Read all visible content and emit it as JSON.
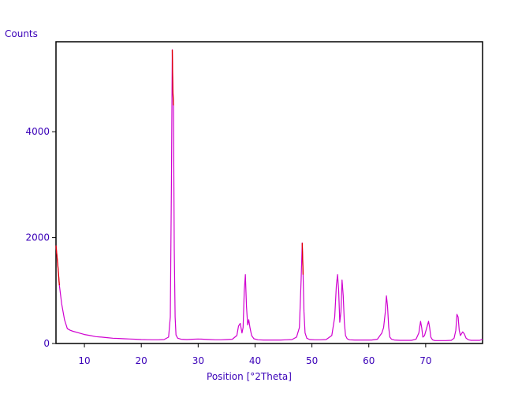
{
  "chart_data": {
    "type": "line",
    "title": "",
    "xlabel": "Position [°2Theta]",
    "ylabel": "Counts",
    "xlim": [
      5,
      80
    ],
    "ylim": [
      0,
      5700
    ],
    "x_ticks": [
      10,
      20,
      30,
      40,
      50,
      60,
      70
    ],
    "y_ticks": [
      0,
      2000,
      4000
    ],
    "grid": false,
    "legend": "none",
    "colors": {
      "pattern": "#d000d0",
      "peak_overlay": "#e00000",
      "axis_text": "#3a00b8",
      "frame": "#000000"
    },
    "series": [
      {
        "x": [
          5.0,
          5.3,
          5.6,
          6.0,
          6.5,
          7.0,
          7.5,
          8.0,
          9.0,
          10.0,
          11.0,
          12.0,
          13.0,
          14.0,
          15.0,
          16.0,
          17.0,
          18.0,
          19.0,
          20.0,
          21.0,
          22.0,
          23.0,
          24.0,
          24.8,
          25.1,
          25.3,
          25.45,
          25.55,
          25.65,
          25.8,
          25.95,
          26.1,
          26.4,
          27.0,
          28.0,
          29.0,
          30.0,
          31.0,
          32.0,
          33.0,
          34.0,
          35.0,
          36.0,
          36.8,
          37.1,
          37.4,
          37.7,
          37.9,
          38.1,
          38.3,
          38.5,
          38.7,
          38.9,
          39.1,
          39.4,
          39.8,
          40.5,
          41.5,
          42.5,
          43.5,
          44.5,
          45.5,
          46.5,
          47.3,
          47.8,
          48.1,
          48.3,
          48.45,
          48.6,
          48.8,
          49.1,
          49.6,
          50.5,
          51.5,
          52.5,
          53.5,
          54.0,
          54.3,
          54.5,
          54.7,
          54.9,
          55.1,
          55.3,
          55.5,
          55.7,
          55.9,
          56.2,
          56.6,
          57.5,
          58.5,
          59.5,
          60.5,
          61.5,
          62.3,
          62.6,
          62.9,
          63.1,
          63.3,
          63.5,
          63.7,
          64.0,
          64.5,
          65.5,
          66.5,
          67.5,
          68.3,
          68.8,
          69.1,
          69.3,
          69.5,
          69.8,
          70.2,
          70.5,
          70.7,
          70.9,
          71.2,
          71.6,
          72.5,
          73.5,
          74.5,
          75.0,
          75.3,
          75.5,
          75.7,
          75.9,
          76.1,
          76.5,
          76.8,
          77.1,
          77.5,
          78.0,
          78.5,
          79.0,
          79.5,
          80.0
        ],
        "y": [
          1850,
          1500,
          1100,
          750,
          450,
          280,
          250,
          230,
          200,
          170,
          150,
          130,
          120,
          110,
          100,
          95,
          90,
          85,
          80,
          75,
          72,
          70,
          70,
          75,
          120,
          500,
          3000,
          5550,
          4800,
          4500,
          1800,
          500,
          160,
          100,
          80,
          75,
          80,
          85,
          80,
          75,
          70,
          70,
          75,
          80,
          150,
          330,
          380,
          200,
          300,
          1000,
          1300,
          700,
          350,
          450,
          300,
          150,
          90,
          70,
          65,
          65,
          65,
          65,
          70,
          75,
          120,
          300,
          1200,
          1900,
          1300,
          600,
          200,
          100,
          75,
          70,
          70,
          75,
          150,
          500,
          1100,
          1300,
          1000,
          400,
          600,
          1200,
          900,
          400,
          150,
          90,
          70,
          65,
          65,
          65,
          65,
          80,
          200,
          300,
          600,
          900,
          700,
          300,
          120,
          80,
          65,
          60,
          60,
          60,
          80,
          200,
          420,
          300,
          120,
          150,
          300,
          420,
          300,
          120,
          70,
          55,
          55,
          55,
          60,
          100,
          250,
          550,
          500,
          250,
          150,
          220,
          180,
          100,
          70,
          60,
          60,
          60,
          60,
          80
        ]
      }
    ],
    "peak_overlay": [
      {
        "x": [
          25.45,
          25.55,
          25.65
        ],
        "y": [
          5550,
          4800,
          4500
        ]
      },
      {
        "x": [
          48.3,
          48.45
        ],
        "y": [
          1900,
          1300
        ]
      },
      {
        "x": [
          5.0,
          5.3,
          5.6
        ],
        "y": [
          1850,
          1500,
          1100
        ]
      }
    ]
  }
}
